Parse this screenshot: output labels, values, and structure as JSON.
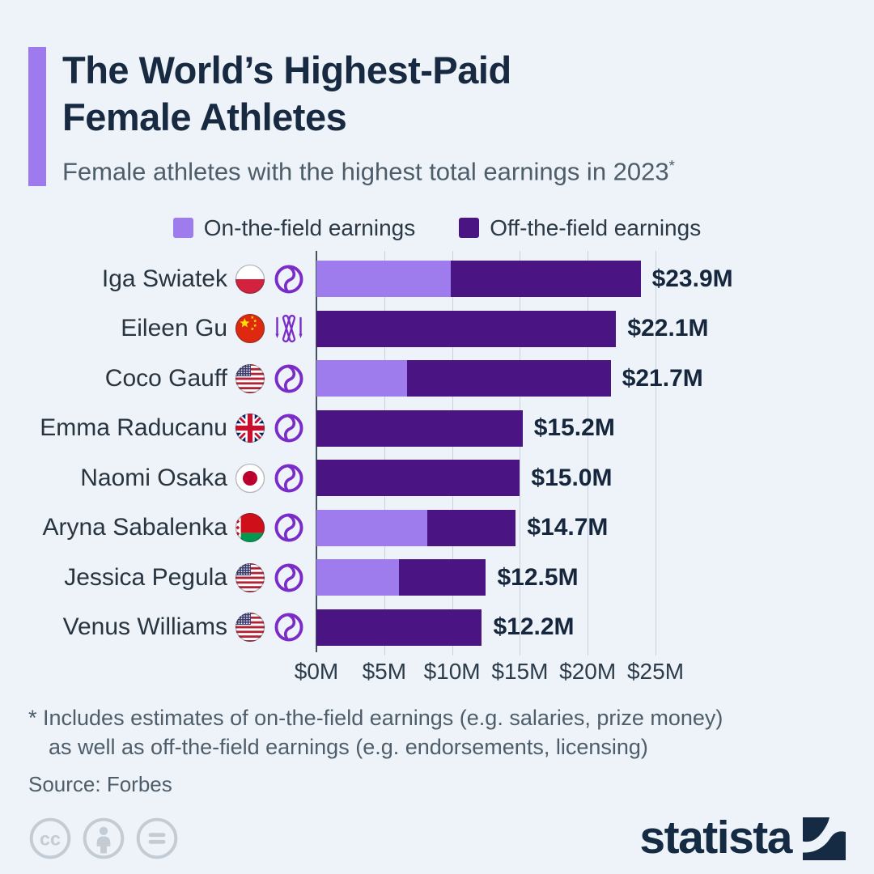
{
  "page": {
    "background": "#edf3f8"
  },
  "header": {
    "title_line1": "The World’s Highest-Paid",
    "title_line2": "Female Athletes",
    "subtitle": "Female athletes with the highest total earnings in 2023",
    "subtitle_note_marker": "*",
    "accent_color": "#9d7bee"
  },
  "legend": [
    {
      "label": "On-the-field earnings",
      "color": "#9e7cee"
    },
    {
      "label": "Off-the-field earnings",
      "color": "#4a1582"
    }
  ],
  "chart_data": {
    "type": "bar",
    "orientation": "horizontal",
    "stacked": true,
    "unit": "USD millions",
    "xlim": [
      0,
      25
    ],
    "x_ticks": [
      "$0M",
      "$5M",
      "$10M",
      "$15M",
      "$20M",
      "$25M"
    ],
    "grid": true,
    "series_names": [
      "On-the-field earnings",
      "Off-the-field earnings"
    ],
    "colors": {
      "on_field": "#9e7cee",
      "off_field": "#4a1582",
      "gridline": "#c9d2d9",
      "axis": "#44535f"
    },
    "athletes": [
      {
        "name": "Iga Swiatek",
        "country": "Poland",
        "flag": "poland",
        "sport": "tennis",
        "sport_icon": "tennis-ball-icon",
        "on_field": 9.9,
        "off_field": 14.0,
        "total": 23.9,
        "total_label": "$23.9M"
      },
      {
        "name": "Eileen Gu",
        "country": "China",
        "flag": "china",
        "sport": "skiing",
        "sport_icon": "crossed-skis-icon",
        "on_field": 0,
        "off_field": 22.1,
        "total": 22.1,
        "total_label": "$22.1M"
      },
      {
        "name": "Coco Gauff",
        "country": "United States",
        "flag": "usa",
        "sport": "tennis",
        "sport_icon": "tennis-ball-icon",
        "on_field": 6.7,
        "off_field": 15.0,
        "total": 21.7,
        "total_label": "$21.7M"
      },
      {
        "name": "Emma Raducanu",
        "country": "United Kingdom",
        "flag": "uk",
        "sport": "tennis",
        "sport_icon": "tennis-ball-icon",
        "on_field": 0,
        "off_field": 15.2,
        "total": 15.2,
        "total_label": "$15.2M"
      },
      {
        "name": "Naomi Osaka",
        "country": "Japan",
        "flag": "japan",
        "sport": "tennis",
        "sport_icon": "tennis-ball-icon",
        "on_field": 0,
        "off_field": 15.0,
        "total": 15.0,
        "total_label": "$15.0M"
      },
      {
        "name": "Aryna Sabalenka",
        "country": "Belarus",
        "flag": "belarus",
        "sport": "tennis",
        "sport_icon": "tennis-ball-icon",
        "on_field": 8.2,
        "off_field": 6.5,
        "total": 14.7,
        "total_label": "$14.7M"
      },
      {
        "name": "Jessica Pegula",
        "country": "United States",
        "flag": "usa",
        "sport": "tennis",
        "sport_icon": "tennis-ball-icon",
        "on_field": 6.1,
        "off_field": 6.4,
        "total": 12.5,
        "total_label": "$12.5M"
      },
      {
        "name": "Venus Williams",
        "country": "United States",
        "flag": "usa",
        "sport": "tennis",
        "sport_icon": "tennis-ball-icon",
        "on_field": 0,
        "off_field": 12.2,
        "total": 12.2,
        "total_label": "$12.2M"
      }
    ]
  },
  "footnote": {
    "line1": "* Includes estimates of on-the-field earnings (e.g. salaries, prize money)",
    "line2": "as well as off-the-field earnings (e.g. endorsements, licensing)",
    "source": "Source: Forbes"
  },
  "footer": {
    "license_icons": [
      "cc-icon",
      "attribution-person-icon",
      "equals-icon"
    ],
    "brand": "statista",
    "brand_color": "#142b43"
  }
}
